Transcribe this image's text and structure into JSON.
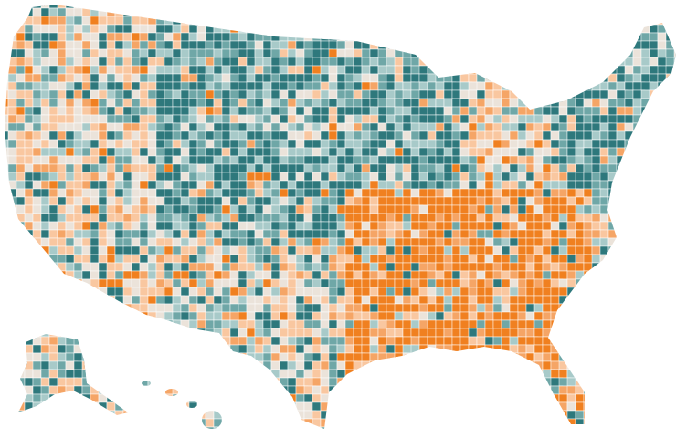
{
  "map": {
    "palette": [
      "#2e787c",
      "#6fa7a7",
      "#a8cac9",
      "#ebe3da",
      "#f9c7a0",
      "#f5a566",
      "#f08020"
    ]
  }
}
